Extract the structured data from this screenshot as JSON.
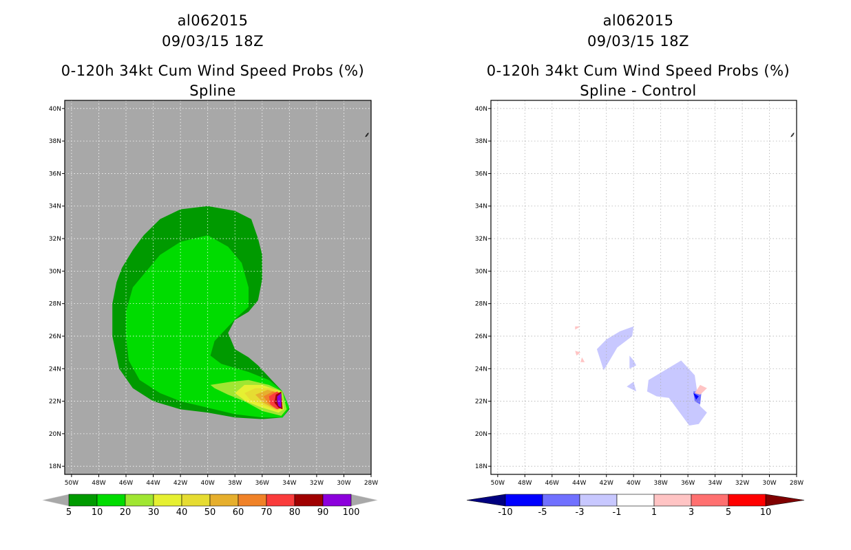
{
  "colors": {
    "ocean": "#a8a8a8",
    "neg": [
      "#000080",
      "#0000ff",
      "#7070ff",
      "#c8c8ff"
    ],
    "pos": [
      "#ffc4c4",
      "#ff7070",
      "#ff0000",
      "#800000"
    ]
  },
  "chart_data": [
    {
      "type": "heatmap",
      "storm_id": "al062015",
      "datetime": "09/03/15 18Z",
      "title": "0-120h 34kt Cum Wind Speed Probs (%)",
      "subtitle": "Spline",
      "x_ticks": [
        "50W",
        "48W",
        "46W",
        "44W",
        "42W",
        "40W",
        "38W",
        "36W",
        "34W",
        "32W",
        "30W",
        "28W"
      ],
      "y_ticks": [
        "40N",
        "38N",
        "36N",
        "34N",
        "32N",
        "30N",
        "28N",
        "26N",
        "24N",
        "22N",
        "20N",
        "18N"
      ],
      "xlim": [
        -50.5,
        -28
      ],
      "ylim": [
        17.5,
        40.5
      ],
      "grid": true,
      "colorbar": {
        "labels": [
          "5",
          "10",
          "20",
          "30",
          "40",
          "50",
          "60",
          "70",
          "80",
          "90",
          "100"
        ],
        "colors": [
          "#009a00",
          "#00dc00",
          "#a0e632",
          "#e6f032",
          "#e6dc32",
          "#e6af2d",
          "#f08228",
          "#fa3c3c",
          "#a00000",
          "#8c00dc"
        ]
      },
      "contours": [
        {
          "level": 5,
          "color": "#009a00",
          "points": [
            [
              -46.3,
              30.2
            ],
            [
              -45.5,
              31.3
            ],
            [
              -44.7,
              32.2
            ],
            [
              -43.5,
              33.2
            ],
            [
              -42.0,
              33.8
            ],
            [
              -40.0,
              34.0
            ],
            [
              -38.0,
              33.7
            ],
            [
              -36.8,
              33.2
            ],
            [
              -36.3,
              32.0
            ],
            [
              -36.0,
              31.0
            ],
            [
              -36.0,
              29.5
            ],
            [
              -36.3,
              28.2
            ],
            [
              -37.0,
              27.5
            ],
            [
              -38.0,
              27.0
            ],
            [
              -38.5,
              26.2
            ],
            [
              -38.0,
              25.2
            ],
            [
              -37.0,
              24.7
            ],
            [
              -36.3,
              24.2
            ],
            [
              -35.3,
              23.3
            ],
            [
              -34.5,
              22.6
            ],
            [
              -34.0,
              21.5
            ],
            [
              -34.5,
              21.0
            ],
            [
              -36.0,
              20.9
            ],
            [
              -38.0,
              21.0
            ],
            [
              -40.0,
              21.3
            ],
            [
              -42.0,
              21.5
            ],
            [
              -44.0,
              22.0
            ],
            [
              -45.5,
              22.8
            ],
            [
              -46.5,
              24.0
            ],
            [
              -47.0,
              26.0
            ],
            [
              -47.0,
              28.0
            ],
            [
              -46.7,
              29.3
            ]
          ]
        },
        {
          "level": 10,
          "color": "#00dc00",
          "points": [
            [
              -45.5,
              29.0
            ],
            [
              -44.5,
              30.0
            ],
            [
              -43.5,
              31.0
            ],
            [
              -42.0,
              31.8
            ],
            [
              -40.0,
              32.2
            ],
            [
              -38.5,
              31.5
            ],
            [
              -37.5,
              30.5
            ],
            [
              -37.0,
              29.0
            ],
            [
              -37.0,
              27.8
            ],
            [
              -37.8,
              27.2
            ],
            [
              -38.6,
              26.5
            ],
            [
              -39.5,
              25.7
            ],
            [
              -39.8,
              24.8
            ],
            [
              -39.0,
              24.3
            ],
            [
              -37.0,
              23.8
            ],
            [
              -35.5,
              23.3
            ],
            [
              -34.5,
              22.6
            ],
            [
              -34.0,
              21.6
            ],
            [
              -34.5,
              21.0
            ],
            [
              -36.0,
              21.0
            ],
            [
              -38.0,
              21.2
            ],
            [
              -40.0,
              21.6
            ],
            [
              -42.0,
              22.0
            ],
            [
              -43.5,
              22.5
            ],
            [
              -45.0,
              23.3
            ],
            [
              -45.8,
              24.5
            ],
            [
              -46.0,
              26.0
            ],
            [
              -46.0,
              27.5
            ]
          ]
        },
        {
          "level": 20,
          "color": "#a0e632",
          "points": [
            [
              -39.8,
              23.0
            ],
            [
              -38.3,
              23.2
            ],
            [
              -37.0,
              23.3
            ],
            [
              -35.5,
              23.0
            ],
            [
              -34.5,
              22.6
            ],
            [
              -34.2,
              21.5
            ],
            [
              -34.6,
              21.1
            ],
            [
              -36.0,
              21.4
            ],
            [
              -37.3,
              22.0
            ],
            [
              -38.5,
              22.4
            ],
            [
              -39.5,
              22.8
            ]
          ]
        },
        {
          "level": 30,
          "color": "#e6f032",
          "points": [
            [
              -38.0,
              22.5
            ],
            [
              -37.3,
              23.0
            ],
            [
              -36.0,
              23.0
            ],
            [
              -34.6,
              22.6
            ],
            [
              -34.4,
              21.5
            ],
            [
              -34.8,
              21.3
            ],
            [
              -36.0,
              21.6
            ],
            [
              -37.2,
              22.0
            ]
          ]
        },
        {
          "level": 40,
          "color": "#e6dc32",
          "points": [
            [
              -37.3,
              22.5
            ],
            [
              -36.5,
              22.8
            ],
            [
              -35.3,
              22.8
            ],
            [
              -34.6,
              22.5
            ],
            [
              -34.5,
              21.6
            ],
            [
              -34.9,
              21.4
            ],
            [
              -36.0,
              21.8
            ],
            [
              -36.9,
              22.1
            ]
          ]
        },
        {
          "level": 50,
          "color": "#e6af2d",
          "points": [
            [
              -36.5,
              22.4
            ],
            [
              -35.6,
              22.7
            ],
            [
              -34.7,
              22.5
            ],
            [
              -34.6,
              21.7
            ],
            [
              -35.0,
              21.5
            ],
            [
              -35.9,
              21.9
            ]
          ]
        },
        {
          "level": 60,
          "color": "#f08228",
          "points": [
            [
              -35.9,
              22.3
            ],
            [
              -35.2,
              22.6
            ],
            [
              -34.7,
              22.4
            ],
            [
              -34.6,
              21.7
            ],
            [
              -35.1,
              21.6
            ],
            [
              -35.6,
              21.9
            ]
          ]
        },
        {
          "level": 70,
          "color": "#fa3c3c",
          "points": [
            [
              -35.5,
              22.3
            ],
            [
              -34.9,
              22.6
            ],
            [
              -34.6,
              22.4
            ],
            [
              -34.5,
              21.6
            ],
            [
              -34.9,
              21.5
            ],
            [
              -35.4,
              21.8
            ]
          ]
        },
        {
          "level": 80,
          "color": "#a00000",
          "points": [
            [
              -35.0,
              22.4
            ],
            [
              -34.6,
              22.6
            ],
            [
              -34.5,
              21.5
            ],
            [
              -34.8,
              21.6
            ],
            [
              -35.1,
              21.9
            ]
          ]
        },
        {
          "level": 90,
          "color": "#8c00dc",
          "points": [
            [
              -34.9,
              22.3
            ],
            [
              -34.6,
              22.5
            ],
            [
              -34.6,
              21.6
            ],
            [
              -34.8,
              21.7
            ],
            [
              -34.9,
              22.0
            ]
          ]
        }
      ]
    },
    {
      "type": "heatmap",
      "storm_id": "al062015",
      "datetime": "09/03/15 18Z",
      "title": "0-120h 34kt Cum Wind Speed Probs (%)",
      "subtitle": "Spline - Control",
      "x_ticks": [
        "50W",
        "48W",
        "46W",
        "44W",
        "42W",
        "40W",
        "38W",
        "36W",
        "34W",
        "32W",
        "30W",
        "28W"
      ],
      "y_ticks": [
        "40N",
        "38N",
        "36N",
        "34N",
        "32N",
        "30N",
        "28N",
        "26N",
        "24N",
        "22N",
        "20N",
        "18N"
      ],
      "xlim": [
        -50.5,
        -28
      ],
      "ylim": [
        17.5,
        40.5
      ],
      "grid": true,
      "colorbar": {
        "labels": [
          "-10",
          "-5",
          "-3",
          "-1",
          "1",
          "3",
          "5",
          "10"
        ],
        "colors": [
          "#000080",
          "#0000ff",
          "#7070ff",
          "#c8c8ff",
          "#ffffff",
          "#ffc4c4",
          "#ff7070",
          "#ff0000",
          "#800000"
        ]
      },
      "contours": [
        {
          "level": -1,
          "color": "#c8c8ff",
          "points": [
            [
              -42.7,
              25.2
            ],
            [
              -42.0,
              25.8
            ],
            [
              -41.0,
              26.3
            ],
            [
              -40.0,
              26.6
            ],
            [
              -40.1,
              26.0
            ],
            [
              -41.2,
              25.3
            ],
            [
              -41.7,
              24.6
            ],
            [
              -42.2,
              23.9
            ]
          ]
        },
        {
          "level": -1,
          "color": "#c8c8ff",
          "points": [
            [
              -40.3,
              24.8
            ],
            [
              -40.0,
              24.5
            ],
            [
              -39.8,
              24.2
            ],
            [
              -40.3,
              24.0
            ]
          ]
        },
        {
          "level": -1,
          "color": "#c8c8ff",
          "points": [
            [
              -40.5,
              22.9
            ],
            [
              -40.0,
              23.2
            ],
            [
              -39.8,
              22.6
            ]
          ]
        },
        {
          "level": -1,
          "color": "#c8c8ff",
          "points": [
            [
              -38.9,
              23.3
            ],
            [
              -37.5,
              24.0
            ],
            [
              -36.5,
              24.5
            ],
            [
              -35.5,
              23.6
            ],
            [
              -35.3,
              22.5
            ],
            [
              -35.1,
              21.7
            ],
            [
              -34.6,
              21.3
            ],
            [
              -35.2,
              20.6
            ],
            [
              -35.9,
              20.5
            ],
            [
              -36.6,
              21.3
            ],
            [
              -37.4,
              22.2
            ],
            [
              -38.3,
              22.3
            ],
            [
              -39.0,
              22.6
            ]
          ]
        },
        {
          "level": -3,
          "color": "#7070ff",
          "points": [
            [
              -35.6,
              22.6
            ],
            [
              -35.0,
              22.6
            ],
            [
              -35.1,
              21.8
            ],
            [
              -35.5,
              22.0
            ]
          ]
        },
        {
          "level": -5,
          "color": "#0000ff",
          "points": [
            [
              -35.6,
              22.5
            ],
            [
              -35.2,
              22.3
            ],
            [
              -35.4,
              22.1
            ]
          ]
        },
        {
          "level": 1,
          "color": "#ffc4c4",
          "points": [
            [
              -35.1,
              23.0
            ],
            [
              -34.6,
              22.8
            ],
            [
              -35.1,
              22.4
            ],
            [
              -35.5,
              22.5
            ]
          ]
        },
        {
          "level": 1,
          "color": "#ffc4c4",
          "points": [
            [
              -44.3,
              26.6
            ],
            [
              -43.9,
              26.6
            ],
            [
              -44.3,
              26.4
            ]
          ]
        },
        {
          "level": 1,
          "color": "#ffc4c4",
          "points": [
            [
              -44.3,
              25.1
            ],
            [
              -43.9,
              25.0
            ],
            [
              -44.2,
              24.8
            ]
          ]
        },
        {
          "level": 1,
          "color": "#ffc4c4",
          "points": [
            [
              -43.8,
              24.7
            ],
            [
              -43.6,
              24.4
            ],
            [
              -43.9,
              24.4
            ]
          ]
        }
      ]
    }
  ]
}
